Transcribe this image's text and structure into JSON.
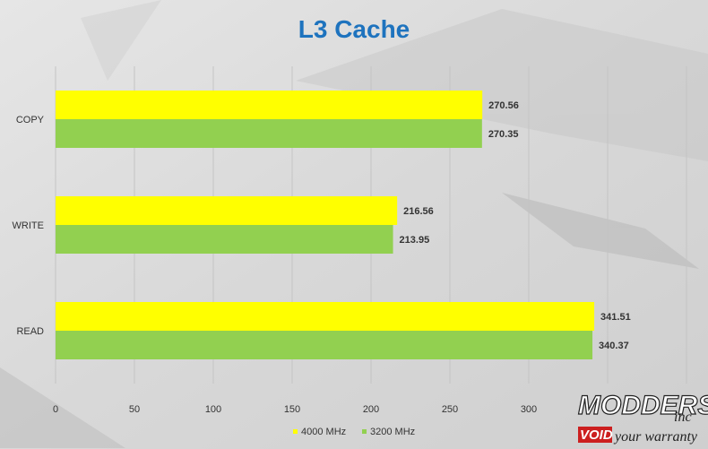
{
  "colors": {
    "background": "#dedede",
    "gridline": "#c4c4c4",
    "title": "#1e73be",
    "series_4000": "#ffff00",
    "series_3200": "#92d050",
    "watermark_void": "#cc1f1f"
  },
  "watermark": {
    "line1": "MODDERS",
    "line2": "inc",
    "void": "VOID",
    "line3": "your warranty"
  },
  "chart_data": {
    "type": "bar",
    "orientation": "horizontal",
    "title": "L3 Cache",
    "categories": [
      "COPY",
      "WRITE",
      "READ"
    ],
    "series": [
      {
        "name": "4000 MHz",
        "values": [
          270.56,
          216.56,
          341.51
        ]
      },
      {
        "name": "3200 MHz",
        "values": [
          270.35,
          213.95,
          340.37
        ]
      }
    ],
    "value_labels": [
      [
        "270.56",
        "216.56",
        "341.51"
      ],
      [
        "270.35",
        "213.95",
        "340.37"
      ]
    ],
    "xlim": [
      0,
      400
    ],
    "xticks": [
      "0",
      "50",
      "100",
      "150",
      "200",
      "250",
      "300"
    ],
    "grid": "vertical",
    "legend_position": "bottom"
  }
}
